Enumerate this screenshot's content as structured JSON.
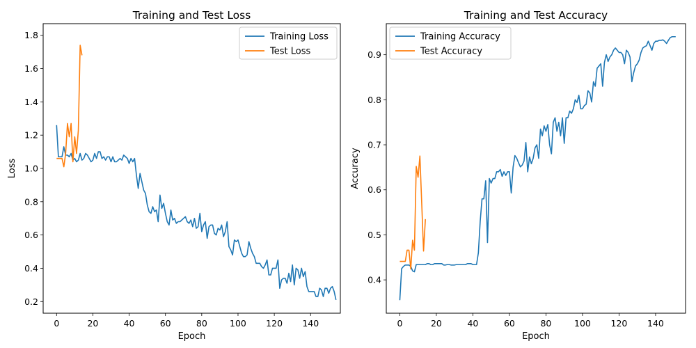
{
  "chart_data": [
    {
      "type": "line",
      "title": "Training and Test Loss",
      "xlabel": "Epoch",
      "ylabel": "Loss",
      "xlim": [
        -7.4,
        156.4
      ],
      "ylim": [
        0.13,
        1.87
      ],
      "xticks": [
        0,
        20,
        40,
        60,
        80,
        100,
        120,
        140
      ],
      "yticks": [
        0.2,
        0.4,
        0.6,
        0.8,
        1.0,
        1.2,
        1.4,
        1.6,
        1.8
      ],
      "ytick_labels": [
        "0.2",
        "0.4",
        "0.6",
        "0.8",
        "1.0",
        "1.2",
        "1.4",
        "1.6",
        "1.8"
      ],
      "legend_position": "top-right",
      "series": [
        {
          "name": "Training Loss",
          "color": "#1f77b4",
          "values": [
            1.26,
            1.07,
            1.07,
            1.07,
            1.13,
            1.08,
            1.08,
            1.07,
            1.09,
            1.05,
            1.06,
            1.04,
            1.05,
            1.09,
            1.05,
            1.06,
            1.09,
            1.08,
            1.06,
            1.04,
            1.05,
            1.09,
            1.06,
            1.1,
            1.1,
            1.06,
            1.07,
            1.05,
            1.07,
            1.07,
            1.04,
            1.07,
            1.04,
            1.04,
            1.05,
            1.06,
            1.05,
            1.08,
            1.07,
            1.06,
            1.03,
            1.06,
            1.04,
            1.06,
            0.96,
            0.88,
            0.97,
            0.92,
            0.87,
            0.85,
            0.78,
            0.74,
            0.73,
            0.77,
            0.74,
            0.75,
            0.68,
            0.84,
            0.76,
            0.79,
            0.73,
            0.68,
            0.66,
            0.75,
            0.69,
            0.7,
            0.67,
            0.68,
            0.68,
            0.69,
            0.7,
            0.71,
            0.68,
            0.67,
            0.69,
            0.65,
            0.7,
            0.64,
            0.65,
            0.73,
            0.62,
            0.66,
            0.68,
            0.58,
            0.65,
            0.66,
            0.66,
            0.61,
            0.6,
            0.64,
            0.63,
            0.66,
            0.59,
            0.62,
            0.68,
            0.53,
            0.51,
            0.48,
            0.57,
            0.56,
            0.57,
            0.53,
            0.49,
            0.47,
            0.47,
            0.48,
            0.56,
            0.52,
            0.49,
            0.47,
            0.43,
            0.43,
            0.43,
            0.41,
            0.4,
            0.42,
            0.45,
            0.36,
            0.36,
            0.4,
            0.4,
            0.4,
            0.45,
            0.28,
            0.33,
            0.34,
            0.34,
            0.31,
            0.37,
            0.32,
            0.42,
            0.3,
            0.4,
            0.39,
            0.34,
            0.4,
            0.35,
            0.38,
            0.29,
            0.26,
            0.26,
            0.26,
            0.26,
            0.23,
            0.23,
            0.28,
            0.27,
            0.23,
            0.28,
            0.28,
            0.25,
            0.28,
            0.29,
            0.26,
            0.21
          ]
        },
        {
          "name": "Test Loss",
          "color": "#ff7f0e",
          "values": [
            1.06,
            1.06,
            1.06,
            1.06,
            1.01,
            1.09,
            1.27,
            1.19,
            1.27,
            1.04,
            1.19,
            1.09,
            1.23,
            1.74,
            1.68
          ]
        }
      ]
    },
    {
      "type": "line",
      "title": "Training and Test Accuracy",
      "xlabel": "Epoch",
      "ylabel": "Accuracy",
      "xlim": [
        -7.4,
        156.4
      ],
      "ylim": [
        0.326,
        0.969
      ],
      "xticks": [
        0,
        20,
        40,
        60,
        80,
        100,
        120,
        140
      ],
      "yticks": [
        0.4,
        0.5,
        0.6,
        0.7,
        0.8,
        0.9
      ],
      "ytick_labels": [
        "0.4",
        "0.5",
        "0.6",
        "0.7",
        "0.8",
        "0.9"
      ],
      "legend_position": "top-left",
      "series": [
        {
          "name": "Training Accuracy",
          "color": "#1f77b4",
          "values": [
            0.355,
            0.425,
            0.43,
            0.433,
            0.433,
            0.433,
            0.43,
            0.42,
            0.418,
            0.434,
            0.434,
            0.434,
            0.434,
            0.434,
            0.434,
            0.436,
            0.436,
            0.434,
            0.434,
            0.436,
            0.436,
            0.436,
            0.436,
            0.436,
            0.433,
            0.433,
            0.434,
            0.434,
            0.433,
            0.433,
            0.433,
            0.434,
            0.434,
            0.434,
            0.434,
            0.434,
            0.434,
            0.436,
            0.436,
            0.436,
            0.434,
            0.434,
            0.434,
            0.46,
            0.53,
            0.58,
            0.58,
            0.62,
            0.483,
            0.625,
            0.615,
            0.625,
            0.625,
            0.64,
            0.64,
            0.645,
            0.63,
            0.64,
            0.632,
            0.64,
            0.64,
            0.593,
            0.65,
            0.676,
            0.67,
            0.66,
            0.651,
            0.655,
            0.664,
            0.705,
            0.64,
            0.673,
            0.658,
            0.67,
            0.693,
            0.7,
            0.67,
            0.735,
            0.72,
            0.742,
            0.73,
            0.745,
            0.7,
            0.68,
            0.75,
            0.76,
            0.73,
            0.75,
            0.72,
            0.76,
            0.703,
            0.76,
            0.76,
            0.775,
            0.77,
            0.78,
            0.8,
            0.794,
            0.81,
            0.78,
            0.78,
            0.787,
            0.79,
            0.82,
            0.815,
            0.795,
            0.84,
            0.83,
            0.87,
            0.875,
            0.88,
            0.83,
            0.883,
            0.9,
            0.885,
            0.895,
            0.9,
            0.91,
            0.915,
            0.91,
            0.905,
            0.905,
            0.9,
            0.88,
            0.91,
            0.905,
            0.895,
            0.84,
            0.86,
            0.875,
            0.88,
            0.888,
            0.905,
            0.915,
            0.918,
            0.92,
            0.93,
            0.92,
            0.91,
            0.925,
            0.93,
            0.93,
            0.932,
            0.932,
            0.933,
            0.93,
            0.925,
            0.932,
            0.938,
            0.94,
            0.94,
            0.94
          ]
        },
        {
          "name": "Test Accuracy",
          "color": "#ff7f0e",
          "values": [
            0.441,
            0.441,
            0.441,
            0.441,
            0.466,
            0.466,
            0.424,
            0.488,
            0.466,
            0.652,
            0.628,
            0.675,
            0.57,
            0.464,
            0.535
          ]
        }
      ]
    }
  ]
}
